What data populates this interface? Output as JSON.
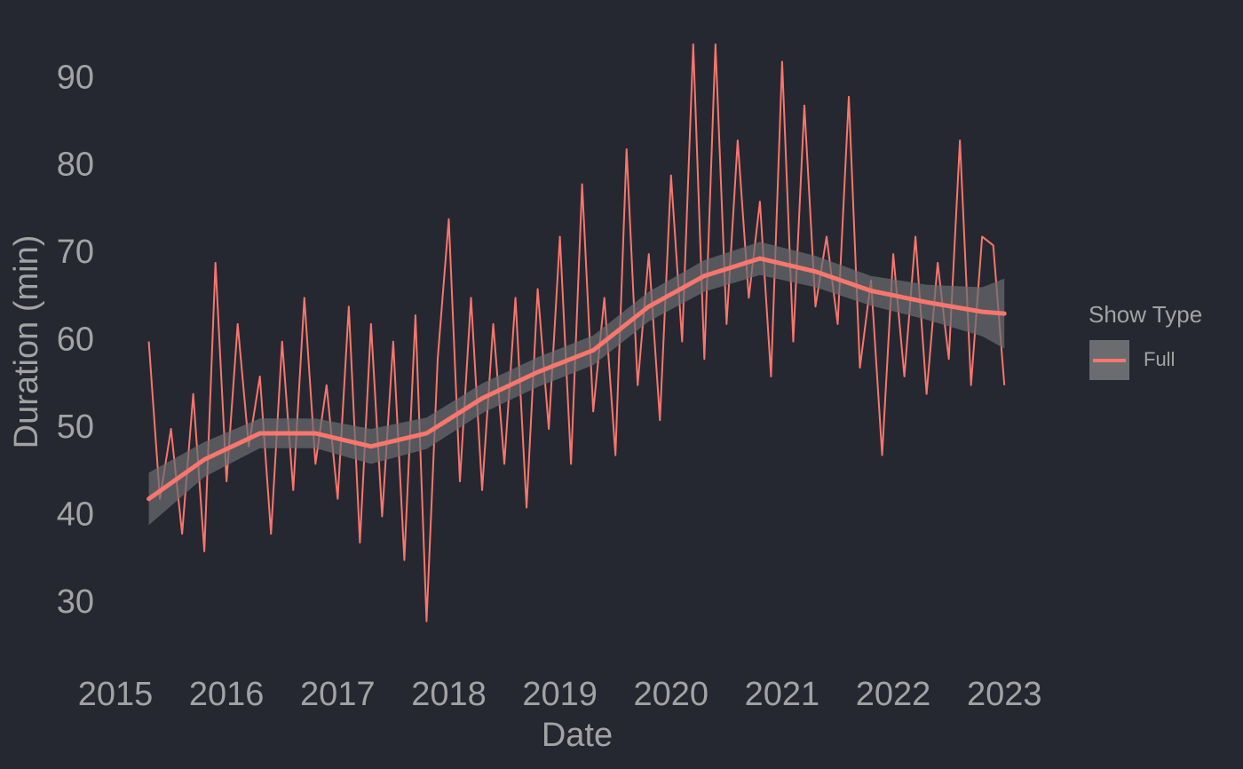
{
  "chart_data": {
    "type": "line",
    "x_label": "Date",
    "y_label": "Duration (min)",
    "legend_title": "Show Type",
    "legend": "right",
    "x": [
      2015.3,
      2015.4,
      2015.5,
      2015.6,
      2015.7,
      2015.8,
      2015.9,
      2016.0,
      2016.1,
      2016.2,
      2016.3,
      2016.4,
      2016.5,
      2016.6,
      2016.7,
      2016.8,
      2016.9,
      2017.0,
      2017.1,
      2017.2,
      2017.3,
      2017.4,
      2017.5,
      2017.6,
      2017.7,
      2017.8,
      2017.9,
      2018.0,
      2018.1,
      2018.2,
      2018.3,
      2018.4,
      2018.5,
      2018.6,
      2018.7,
      2018.8,
      2018.9,
      2019.0,
      2019.1,
      2019.2,
      2019.3,
      2019.4,
      2019.5,
      2019.6,
      2019.7,
      2019.8,
      2019.9,
      2020.0,
      2020.1,
      2020.2,
      2020.3,
      2020.4,
      2020.5,
      2020.6,
      2020.7,
      2020.8,
      2020.9,
      2021.0,
      2021.1,
      2021.2,
      2021.3,
      2021.4,
      2021.5,
      2021.6,
      2021.7,
      2021.8,
      2021.9,
      2022.0,
      2022.1,
      2022.2,
      2022.3,
      2022.4,
      2022.5,
      2022.6,
      2022.7,
      2022.8,
      2022.9,
      2023.0
    ],
    "series": [
      {
        "name": "Full",
        "color": "#f8766d",
        "values": [
          60,
          42,
          50,
          38,
          54,
          36,
          69,
          44,
          62,
          48,
          56,
          38,
          60,
          43,
          65,
          46,
          55,
          42,
          64,
          37,
          62,
          40,
          60,
          35,
          63,
          28,
          58,
          74,
          44,
          65,
          43,
          62,
          46,
          65,
          41,
          66,
          50,
          72,
          46,
          78,
          52,
          65,
          47,
          82,
          55,
          70,
          51,
          79,
          60,
          94,
          58,
          94,
          62,
          83,
          65,
          76,
          56,
          92,
          60,
          87,
          64,
          72,
          62,
          88,
          57,
          67,
          47,
          70,
          56,
          72,
          54,
          69,
          58,
          83,
          55,
          72,
          71,
          55
        ]
      }
    ],
    "smooth": {
      "band_color": "#6b6c70",
      "x": [
        2015.3,
        2015.8,
        2016.3,
        2016.8,
        2017.3,
        2017.8,
        2018.3,
        2018.8,
        2019.3,
        2019.8,
        2020.3,
        2020.8,
        2021.3,
        2021.8,
        2022.3,
        2022.8,
        2023.0
      ],
      "values": [
        42,
        46.5,
        49.5,
        49.5,
        48,
        49.5,
        53.5,
        56.5,
        59,
        64,
        67.5,
        69.5,
        68,
        65.8,
        64.5,
        63.4,
        63.2
      ],
      "lower": [
        39,
        44.5,
        47.8,
        47.8,
        46,
        47.7,
        51.8,
        54.8,
        57.3,
        62.3,
        65.7,
        67.6,
        66.2,
        64.1,
        62.5,
        60.6,
        59.2
      ],
      "upper": [
        45,
        48.5,
        51.2,
        51.2,
        50,
        51.3,
        55.2,
        58.2,
        60.7,
        65.7,
        69.3,
        71.4,
        69.8,
        67.5,
        66.5,
        66.2,
        67.2
      ]
    },
    "xlim": [
      2014.76,
      2023.23
    ],
    "xticks": [
      2015,
      2016,
      2017,
      2018,
      2019,
      2020,
      2021,
      2022,
      2023
    ],
    "ylim": [
      23.9,
      95
    ],
    "yticks": [
      30,
      40,
      50,
      60,
      70,
      80,
      90
    ],
    "grid": false
  }
}
